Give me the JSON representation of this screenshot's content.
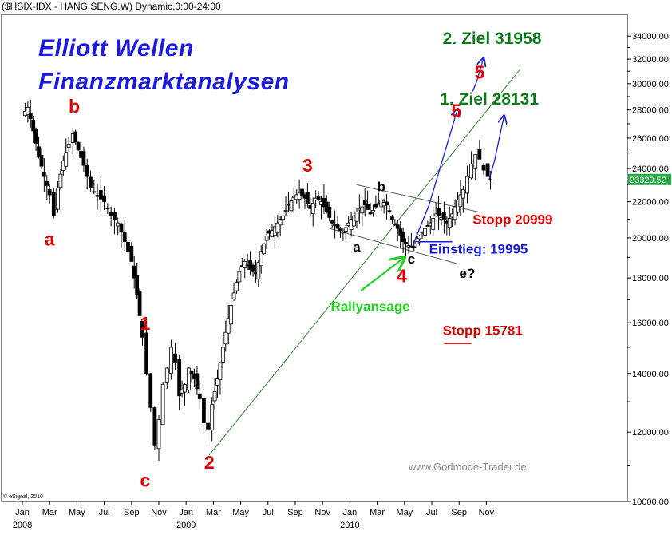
{
  "header": {
    "symbol_line": "($HSIX-IDX - HANG SENG,W) Dynamic,0:00-24:00"
  },
  "title": {
    "line1": "Elliott Wellen",
    "line2": "Finanzmarktanalysen"
  },
  "colors": {
    "wave_red": "#e00000",
    "target_green": "#0a7a1a",
    "blue": "#1a1ae0",
    "light_green": "#22d022",
    "candle_up": "#ffffff",
    "candle_down": "#000000",
    "trendline": "#2a8a2a"
  },
  "footer": {
    "copyright": "© eSignal, 2010",
    "website": "www.Godmode-Trader.de"
  },
  "chart_data": {
    "type": "candlestick",
    "y_scale": "log",
    "ylim": [
      10000,
      36000
    ],
    "y_ticks": [
      {
        "v": 34000,
        "label": "34000.00"
      },
      {
        "v": 32000,
        "label": "32000.00"
      },
      {
        "v": 30000,
        "label": "30000.00"
      },
      {
        "v": 28000,
        "label": "28000.00"
      },
      {
        "v": 26000,
        "label": "26000.00"
      },
      {
        "v": 24000,
        "label": "24000.00"
      },
      {
        "v": 22000,
        "label": "22000.00"
      },
      {
        "v": 20000,
        "label": "20000.00"
      },
      {
        "v": 18000,
        "label": "18000.00"
      },
      {
        "v": 16000,
        "label": "16000.00"
      },
      {
        "v": 14000,
        "label": "14000.00"
      },
      {
        "v": 12000,
        "label": "12000.00"
      },
      {
        "v": 10000,
        "label": "10000.00"
      }
    ],
    "last_price": {
      "v": 23320.52,
      "label": "23320.52"
    },
    "x_ticks": [
      {
        "m": 0,
        "label": "Jan"
      },
      {
        "m": 2,
        "label": "Mar"
      },
      {
        "m": 4,
        "label": "May"
      },
      {
        "m": 6,
        "label": "Jul"
      },
      {
        "m": 8,
        "label": "Sep"
      },
      {
        "m": 10,
        "label": "Nov"
      },
      {
        "m": 12,
        "label": "Jan"
      },
      {
        "m": 14,
        "label": "Mar"
      },
      {
        "m": 16,
        "label": "May"
      },
      {
        "m": 18,
        "label": "Jul"
      },
      {
        "m": 20,
        "label": "Sep"
      },
      {
        "m": 22,
        "label": "Nov"
      },
      {
        "m": 24,
        "label": "Jan"
      },
      {
        "m": 26,
        "label": "Mar"
      },
      {
        "m": 28,
        "label": "May"
      },
      {
        "m": 30,
        "label": "Jul"
      },
      {
        "m": 32,
        "label": "Sep"
      },
      {
        "m": 34,
        "label": "Nov"
      }
    ],
    "year_labels": [
      {
        "m": 0,
        "label": "2008"
      },
      {
        "m": 12,
        "label": "2009"
      },
      {
        "m": 24,
        "label": "2010"
      }
    ],
    "price_anchors": [
      [
        0,
        27600
      ],
      [
        0.4,
        28200
      ],
      [
        0.8,
        26500
      ],
      [
        1.2,
        24800
      ],
      [
        1.6,
        23500
      ],
      [
        2.0,
        22400
      ],
      [
        2.3,
        21200
      ],
      [
        2.6,
        22800
      ],
      [
        3.0,
        24500
      ],
      [
        3.4,
        25600
      ],
      [
        3.7,
        26300
      ],
      [
        4.1,
        25200
      ],
      [
        4.5,
        24200
      ],
      [
        5.0,
        22800
      ],
      [
        5.5,
        22300
      ],
      [
        6.0,
        22000
      ],
      [
        6.5,
        21200
      ],
      [
        7.0,
        20800
      ],
      [
        7.5,
        19800
      ],
      [
        8.0,
        18800
      ],
      [
        8.4,
        17200
      ],
      [
        8.8,
        15400
      ],
      [
        9.1,
        14000
      ],
      [
        9.4,
        12800
      ],
      [
        9.7,
        11600
      ],
      [
        10.0,
        12400
      ],
      [
        10.3,
        13600
      ],
      [
        10.6,
        14200
      ],
      [
        10.9,
        15000
      ],
      [
        11.2,
        14400
      ],
      [
        11.5,
        13200
      ],
      [
        11.9,
        13600
      ],
      [
        12.2,
        14200
      ],
      [
        12.6,
        13800
      ],
      [
        13.0,
        13100
      ],
      [
        13.3,
        12300
      ],
      [
        13.6,
        12100
      ],
      [
        13.9,
        12900
      ],
      [
        14.3,
        13800
      ],
      [
        14.7,
        15000
      ],
      [
        15.1,
        16200
      ],
      [
        15.5,
        17300
      ],
      [
        15.9,
        18300
      ],
      [
        16.3,
        18800
      ],
      [
        16.7,
        18400
      ],
      [
        17.1,
        18200
      ],
      [
        17.5,
        19300
      ],
      [
        17.9,
        20100
      ],
      [
        18.3,
        20400
      ],
      [
        18.7,
        20800
      ],
      [
        19.1,
        21200
      ],
      [
        19.5,
        21800
      ],
      [
        19.9,
        22300
      ],
      [
        20.3,
        22500
      ],
      [
        20.7,
        22200
      ],
      [
        21.1,
        21600
      ],
      [
        21.5,
        22200
      ],
      [
        21.9,
        22000
      ],
      [
        22.3,
        21400
      ],
      [
        22.7,
        20800
      ],
      [
        23.1,
        20500
      ],
      [
        23.5,
        20300
      ],
      [
        23.9,
        20800
      ],
      [
        24.3,
        21200
      ],
      [
        24.7,
        21600
      ],
      [
        25.1,
        21800
      ],
      [
        25.5,
        21300
      ],
      [
        25.9,
        21700
      ],
      [
        26.3,
        22100
      ],
      [
        26.7,
        21800
      ],
      [
        27.1,
        21000
      ],
      [
        27.5,
        20500
      ],
      [
        27.9,
        19800
      ],
      [
        28.3,
        19600
      ],
      [
        28.7,
        19500
      ],
      [
        29.1,
        20100
      ],
      [
        29.5,
        20500
      ],
      [
        29.9,
        20800
      ],
      [
        30.3,
        21300
      ],
      [
        30.7,
        21100
      ],
      [
        31.1,
        20800
      ],
      [
        31.5,
        21300
      ],
      [
        31.9,
        22100
      ],
      [
        32.3,
        22700
      ],
      [
        32.6,
        23500
      ],
      [
        32.9,
        24300
      ],
      [
        33.2,
        24900
      ],
      [
        33.5,
        24600
      ],
      [
        33.8,
        23900
      ],
      [
        34.1,
        23500
      ],
      [
        34.3,
        23320
      ]
    ],
    "trendline": {
      "from": [
        13.7,
        11300
      ],
      "to": [
        36.5,
        31200
      ]
    },
    "channel_upper": {
      "from": [
        24.5,
        23000
      ],
      "to": [
        33.5,
        21400
      ]
    },
    "channel_lower": {
      "from": [
        22.5,
        20500
      ],
      "to": [
        31.8,
        18700
      ]
    },
    "wave_labels": [
      {
        "text": "b",
        "m": 3.8,
        "v": 27800,
        "color": "red"
      },
      {
        "text": "a",
        "m": 2.0,
        "v": 19600,
        "color": "red"
      },
      {
        "text": "1",
        "m": 9.0,
        "v": 15700,
        "color": "red"
      },
      {
        "text": "c",
        "m": 9.0,
        "v": 10400,
        "color": "red"
      },
      {
        "text": "2",
        "m": 13.7,
        "v": 10900,
        "color": "red"
      },
      {
        "text": "3",
        "m": 20.9,
        "v": 23800,
        "color": "red"
      },
      {
        "text": "4",
        "m": 27.8,
        "v": 17800,
        "color": "red"
      },
      {
        "text": "5",
        "m": 31.8,
        "v": 27500,
        "color": "red"
      },
      {
        "text": "5",
        "m": 33.5,
        "v": 30400,
        "color": "red"
      },
      {
        "text": "b",
        "m": 26.3,
        "v": 22600,
        "color": "black"
      },
      {
        "text": "a",
        "m": 24.5,
        "v": 19300,
        "color": "black"
      },
      {
        "text": "c",
        "m": 28.5,
        "v": 18700,
        "color": "black"
      },
      {
        "text": "e?",
        "m": 32.6,
        "v": 18000,
        "color": "black"
      }
    ],
    "annotations": [
      {
        "text": "1. Ziel 28131",
        "m": 30.6,
        "v": 28400,
        "color": "green"
      },
      {
        "text": "2. Ziel 31958",
        "m": 30.8,
        "v": 33300,
        "color": "green"
      },
      {
        "text": "Stopp 20999",
        "m": 33.0,
        "v": 20750,
        "color": "red"
      },
      {
        "text": "Einstieg: 19995",
        "m": 29.8,
        "v": 19200,
        "color": "blue"
      },
      {
        "text": "Rallyansage",
        "m": 22.6,
        "v": 16500,
        "color": "lightgreen"
      },
      {
        "text": "Stopp 15781",
        "m": 30.8,
        "v": 15500,
        "color": "red"
      }
    ]
  }
}
